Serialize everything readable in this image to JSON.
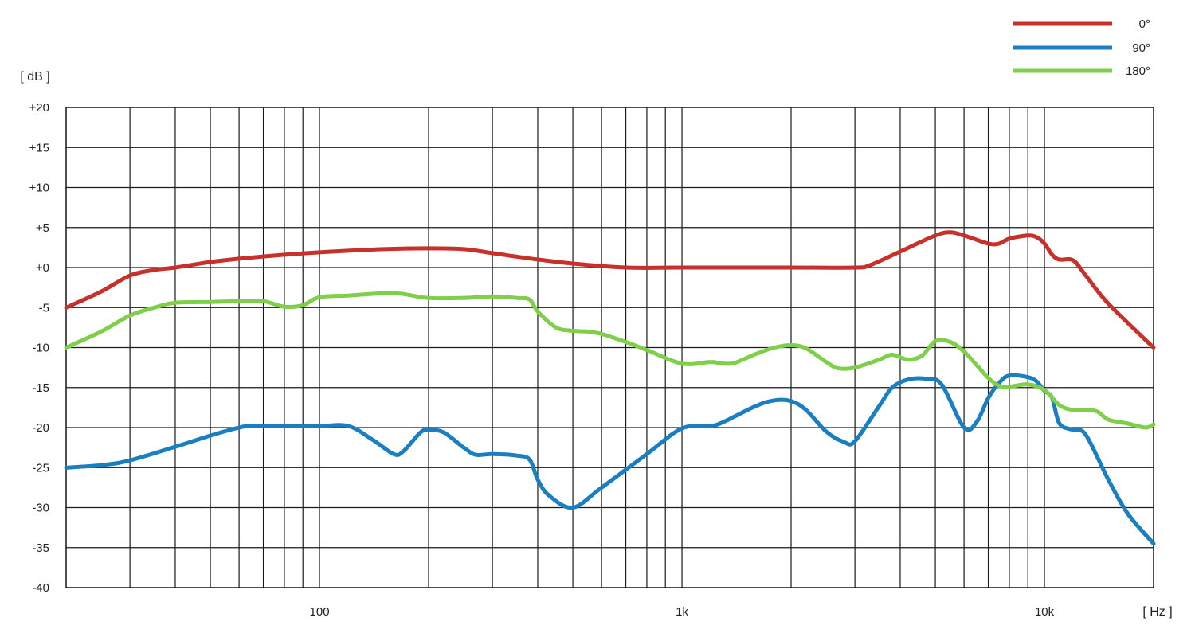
{
  "chart_data": {
    "type": "line",
    "title": "",
    "xlabel": "[ Hz ]",
    "ylabel": "[ dB ]",
    "x_scale": "log",
    "xlim": [
      20,
      20000
    ],
    "ylim": [
      -40,
      20
    ],
    "grid": true,
    "legend_position": "top-right",
    "y_ticks": [
      20,
      15,
      10,
      5,
      0,
      -5,
      -10,
      -15,
      -20,
      -25,
      -30,
      -35,
      -40
    ],
    "y_tick_labels": [
      "+20",
      "+15",
      "+10",
      "+5",
      "+0",
      "-5",
      "-10",
      "-15",
      "-20",
      "-25",
      "-30",
      "-35",
      "-40"
    ],
    "x_gridlines": [
      20,
      30,
      40,
      50,
      60,
      70,
      80,
      90,
      100,
      200,
      300,
      400,
      500,
      600,
      700,
      800,
      900,
      1000,
      2000,
      3000,
      4000,
      5000,
      6000,
      7000,
      8000,
      9000,
      10000,
      20000
    ],
    "x_tick_labels": [
      {
        "value": 100,
        "label": "100"
      },
      {
        "value": 1000,
        "label": "1k"
      },
      {
        "value": 10000,
        "label": "10k"
      }
    ],
    "series": [
      {
        "name": "0°",
        "color": "#c8302b",
        "x": [
          20,
          25,
          30,
          35,
          40,
          50,
          60,
          80,
          100,
          150,
          200,
          250,
          300,
          400,
          500,
          700,
          1000,
          2000,
          3000,
          3300,
          4000,
          5000,
          5500,
          6000,
          7000,
          7500,
          8000,
          9000,
          9500,
          10000,
          10500,
          11000,
          12000,
          13000,
          15000,
          20000
        ],
        "y": [
          -5,
          -3,
          -1,
          -0.3,
          0,
          0.7,
          1.1,
          1.6,
          1.9,
          2.3,
          2.4,
          2.3,
          1.8,
          1.0,
          0.5,
          0,
          0,
          0,
          0,
          0.3,
          2,
          4,
          4.4,
          4.0,
          3.0,
          3.0,
          3.6,
          4.0,
          3.8,
          3.0,
          1.6,
          1.0,
          0.9,
          -1,
          -4.5,
          -10
        ]
      },
      {
        "name": "90°",
        "color": "#1a7fc1",
        "x": [
          20,
          25,
          30,
          40,
          50,
          60,
          65,
          80,
          100,
          120,
          140,
          160,
          170,
          190,
          200,
          220,
          250,
          270,
          300,
          350,
          380,
          400,
          430,
          500,
          600,
          800,
          1000,
          1200,
          1300,
          1600,
          1800,
          2000,
          2200,
          2500,
          2800,
          3000,
          3500,
          3800,
          4200,
          4700,
          5200,
          6000,
          6500,
          7000,
          7500,
          8000,
          9000,
          9500,
          10000,
          10500,
          11000,
          12000,
          13000,
          15000,
          17000,
          20000
        ],
        "y": [
          -25,
          -24.7,
          -24.1,
          -22.4,
          -21,
          -20,
          -19.8,
          -19.8,
          -19.8,
          -19.8,
          -21.5,
          -23.3,
          -23.0,
          -20.6,
          -20.3,
          -20.6,
          -22.5,
          -23.4,
          -23.3,
          -23.5,
          -24.0,
          -26.5,
          -28.5,
          -30,
          -27.5,
          -23.3,
          -20.1,
          -19.8,
          -19.3,
          -17.3,
          -16.6,
          -16.7,
          -17.8,
          -20.5,
          -21.8,
          -21.7,
          -17.3,
          -15.0,
          -14.0,
          -13.9,
          -14.6,
          -20.0,
          -19.3,
          -16.3,
          -14.4,
          -13.5,
          -13.7,
          -14.2,
          -15.4,
          -16.3,
          -19.5,
          -20.3,
          -20.9,
          -26.5,
          -30.8,
          -34.5
        ]
      },
      {
        "name": "180°",
        "color": "#7fcf4a",
        "x": [
          20,
          25,
          30,
          35,
          40,
          50,
          60,
          70,
          80,
          90,
          100,
          120,
          150,
          170,
          200,
          250,
          300,
          350,
          380,
          400,
          450,
          500,
          550,
          600,
          700,
          800,
          1000,
          1200,
          1300,
          1400,
          1600,
          1800,
          2000,
          2200,
          2500,
          2700,
          3000,
          3500,
          3800,
          4200,
          4600,
          5000,
          5500,
          6000,
          6500,
          7000,
          7500,
          8000,
          9000,
          10000,
          11000,
          12000,
          13000,
          14000,
          15000,
          17000,
          19000,
          20000
        ],
        "y": [
          -10,
          -8,
          -6,
          -5,
          -4.4,
          -4.3,
          -4.2,
          -4.2,
          -4.9,
          -4.7,
          -3.7,
          -3.5,
          -3.2,
          -3.3,
          -3.8,
          -3.8,
          -3.6,
          -3.8,
          -4.0,
          -5.5,
          -7.5,
          -7.9,
          -8.0,
          -8.3,
          -9.3,
          -10.3,
          -12.0,
          -11.8,
          -12.0,
          -11.9,
          -10.8,
          -10.0,
          -9.7,
          -10.1,
          -11.8,
          -12.6,
          -12.5,
          -11.5,
          -10.9,
          -11.5,
          -11.0,
          -9.2,
          -9.3,
          -10.5,
          -12.2,
          -13.8,
          -14.8,
          -14.9,
          -14.6,
          -15.3,
          -17.2,
          -17.8,
          -17.8,
          -18.0,
          -19.0,
          -19.5,
          -20.0,
          -19.6
        ]
      }
    ]
  }
}
